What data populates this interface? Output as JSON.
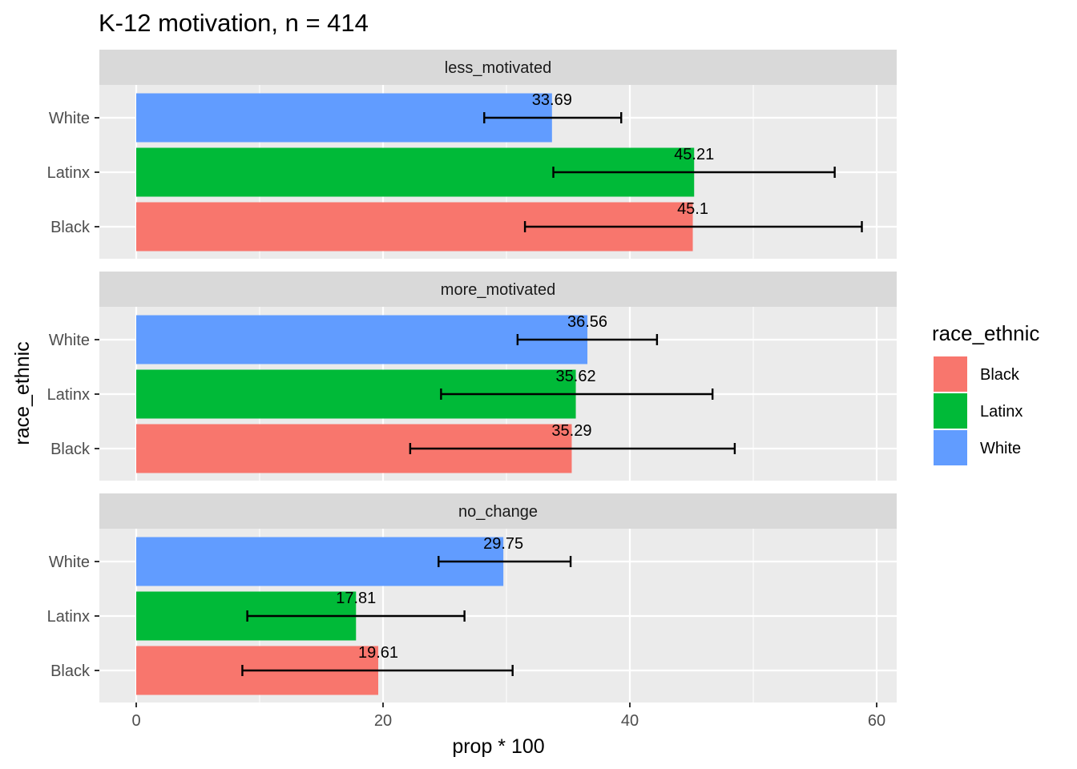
{
  "chart_data": {
    "type": "bar",
    "orientation": "horizontal",
    "title": "K-12 motivation, n = 414",
    "xlabel": "prop * 100",
    "ylabel": "race_ethnic",
    "xlim": [
      -3,
      61.2
    ],
    "x_ticks": [
      0,
      20,
      40,
      60
    ],
    "categories": [
      "White",
      "Latinx",
      "Black"
    ],
    "grid": true,
    "legend": {
      "title": "race_ethnic",
      "position": "right",
      "entries": [
        {
          "label": "Black",
          "color": "#F8766D"
        },
        {
          "label": "Latinx",
          "color": "#00BA38"
        },
        {
          "label": "White",
          "color": "#619CFF"
        }
      ]
    },
    "colors": {
      "Black": "#F8766D",
      "Latinx": "#00BA38",
      "White": "#619CFF"
    },
    "facets": [
      {
        "name": "less_motivated",
        "bars": [
          {
            "group": "White",
            "value": 33.69,
            "label": "33.69",
            "ci": [
              28.2,
              39.3
            ]
          },
          {
            "group": "Latinx",
            "value": 45.21,
            "label": "45.21",
            "ci": [
              33.8,
              56.6
            ]
          },
          {
            "group": "Black",
            "value": 45.1,
            "label": "45.1",
            "ci": [
              31.5,
              58.8
            ]
          }
        ]
      },
      {
        "name": "more_motivated",
        "bars": [
          {
            "group": "White",
            "value": 36.56,
            "label": "36.56",
            "ci": [
              30.9,
              42.2
            ]
          },
          {
            "group": "Latinx",
            "value": 35.62,
            "label": "35.62",
            "ci": [
              24.7,
              46.7
            ]
          },
          {
            "group": "Black",
            "value": 35.29,
            "label": "35.29",
            "ci": [
              22.2,
              48.5
            ]
          }
        ]
      },
      {
        "name": "no_change",
        "bars": [
          {
            "group": "White",
            "value": 29.75,
            "label": "29.75",
            "ci": [
              24.5,
              35.2
            ]
          },
          {
            "group": "Latinx",
            "value": 17.81,
            "label": "17.81",
            "ci": [
              9.0,
              26.6
            ]
          },
          {
            "group": "Black",
            "value": 19.61,
            "label": "19.61",
            "ci": [
              8.6,
              30.5
            ]
          }
        ]
      }
    ]
  }
}
